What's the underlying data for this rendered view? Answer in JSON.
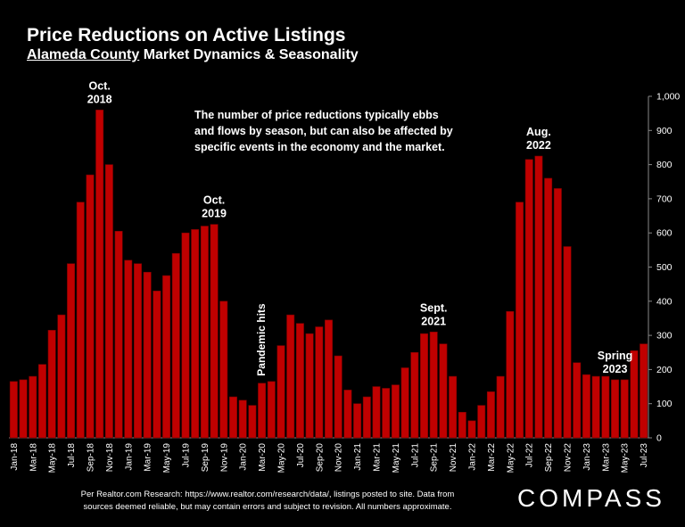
{
  "title": "Price Reductions on Active Listings",
  "subtitle_prefix": "Alameda County",
  "subtitle_rest": " Market Dynamics & Seasonality",
  "footnote_line1": "Per Realtor.com Research:  https://www.realtor.com/research/data/, listings posted to site. Data from",
  "footnote_line2": "sources deemed reliable, but may contain errors and subject to revision. All numbers approximate.",
  "logo": "COMPASS",
  "chart_data": {
    "type": "bar",
    "bar_color": "#c00000",
    "ylim": [
      0,
      1000
    ],
    "yticks": [
      "0",
      "100",
      "200",
      "300",
      "400",
      "500",
      "600",
      "700",
      "800",
      "900",
      "1,000"
    ],
    "categories": [
      "Jan-18",
      "Feb-18",
      "Mar-18",
      "Apr-18",
      "May-18",
      "Jun-18",
      "Jul-18",
      "Aug-18",
      "Sep-18",
      "Oct-18",
      "Nov-18",
      "Dec-18",
      "Jan-19",
      "Feb-19",
      "Mar-19",
      "Apr-19",
      "May-19",
      "Jun-19",
      "Jul-19",
      "Aug-19",
      "Sep-19",
      "Oct-19",
      "Nov-19",
      "Dec-19",
      "Jan-20",
      "Feb-20",
      "Mar-20",
      "Apr-20",
      "May-20",
      "Jun-20",
      "Jul-20",
      "Aug-20",
      "Sep-20",
      "Oct-20",
      "Nov-20",
      "Dec-20",
      "Jan-21",
      "Feb-21",
      "Mar-21",
      "Apr-21",
      "May-21",
      "Jun-21",
      "Jul-21",
      "Aug-21",
      "Sep-21",
      "Oct-21",
      "Nov-21",
      "Dec-21",
      "Jan-22",
      "Feb-22",
      "Mar-22",
      "Apr-22",
      "May-22",
      "Jun-22",
      "Jul-22",
      "Aug-22",
      "Sep-22",
      "Oct-22",
      "Nov-22",
      "Dec-22",
      "Jan-23",
      "Feb-23",
      "Mar-23",
      "Apr-23",
      "May-23",
      "Jun-23",
      "Jul-23"
    ],
    "values": [
      165,
      170,
      180,
      215,
      315,
      360,
      510,
      690,
      770,
      960,
      800,
      605,
      520,
      510,
      485,
      430,
      475,
      540,
      600,
      610,
      620,
      625,
      400,
      120,
      110,
      95,
      160,
      165,
      270,
      360,
      335,
      305,
      325,
      345,
      240,
      140,
      100,
      120,
      150,
      145,
      155,
      205,
      250,
      305,
      310,
      275,
      180,
      75,
      50,
      95,
      135,
      180,
      370,
      690,
      815,
      825,
      760,
      730,
      560,
      220,
      185,
      180,
      180,
      170,
      170,
      255,
      275
    ],
    "xtick_labels_every": 2,
    "annotations": [
      {
        "text": [
          "Oct.",
          "2018"
        ],
        "index": 9
      },
      {
        "text": [
          "Oct.",
          "2019"
        ],
        "index": 21
      },
      {
        "text": [
          "Sept.",
          "2021"
        ],
        "index": 44
      },
      {
        "text": [
          "Aug.",
          "2022"
        ],
        "index": 55
      },
      {
        "text": [
          "Spring",
          "2023"
        ],
        "index": 63
      },
      {
        "text": [
          "Pandemic hits"
        ],
        "index": 26,
        "vertical": true
      }
    ],
    "note": [
      "The number of price reductions typically ebbs",
      "and flows by season, but can also be affected by",
      "specific events in the economy and the market."
    ]
  }
}
